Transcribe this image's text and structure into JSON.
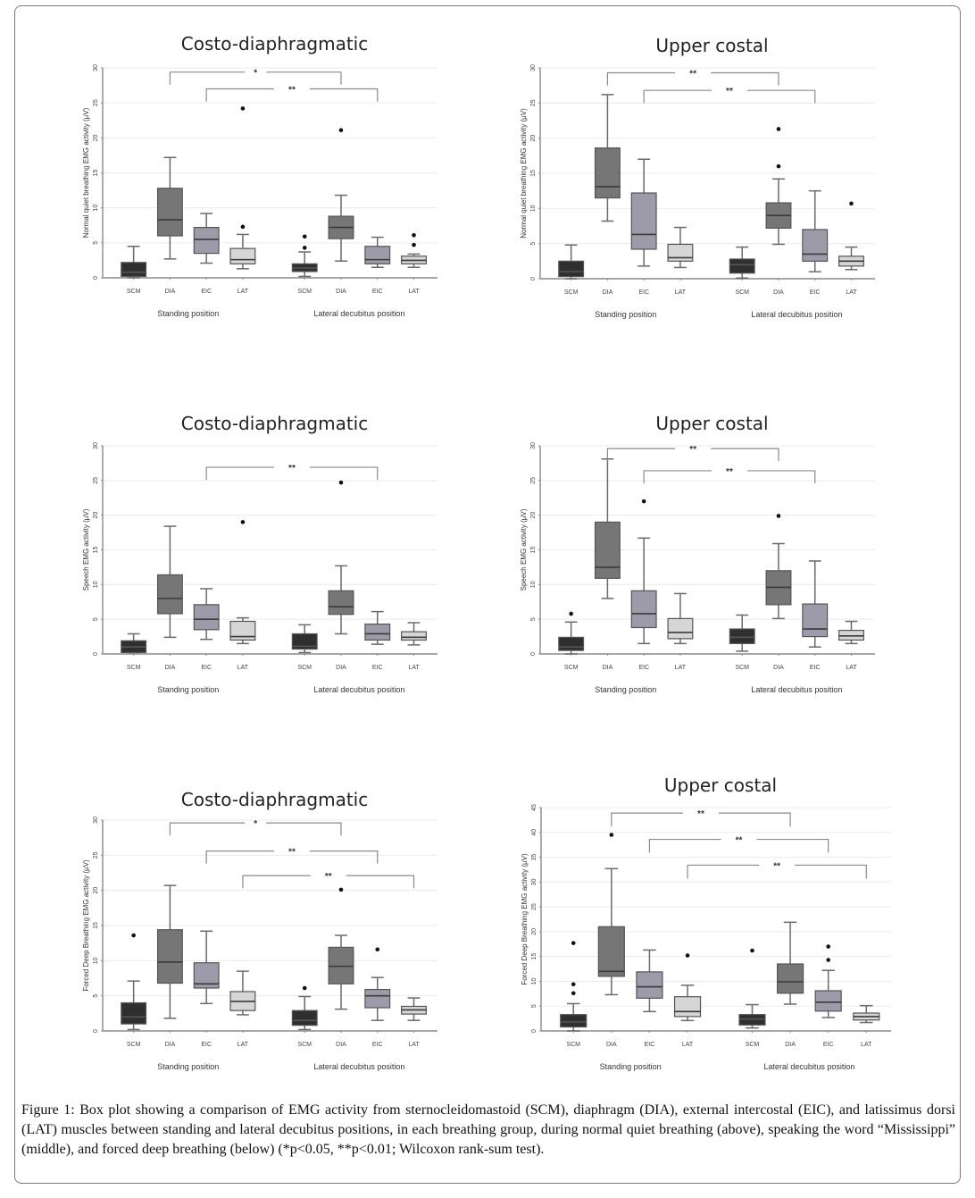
{
  "figure": {
    "caption_label": "Figure 1:",
    "caption_text": " Box plot showing a comparison of EMG activity from sternocleidomastoid (SCM), diaphragm (DIA), external intercostal (EIC), and latissimus dorsi (LAT) muscles between standing and lateral decubitus positions, in each breathing group, during normal quiet breathing (above), speaking the word “Mississippi” (middle), and forced deep breathing (below) (*p<0.05, **p<0.01; Wilcoxon rank-sum test).",
    "colors": {
      "SCM": "#2f2f2f",
      "DIA": "#767676",
      "EIC": "#9d9ba9",
      "LAT": "#d6d6d6",
      "axis": "#8a8a8a",
      "grid": "#eeeaea"
    }
  },
  "chart_data": [
    {
      "type": "box",
      "title": "Costo-diaphragmatic",
      "ylabel": "Normal quiet breathing EMG activity (µV)",
      "ylim": [
        0,
        30
      ],
      "yticks": [
        "0",
        "5",
        "10",
        "15",
        "20",
        "25",
        "30"
      ],
      "groups": [
        "Standing position",
        "Lateral decubitus position"
      ],
      "categories": [
        "SCM",
        "DIA",
        "EIC",
        "LAT"
      ],
      "boxes": [
        {
          "group": 0,
          "cat": "SCM",
          "min": 0,
          "q1": 0.2,
          "median": 0.8,
          "q3": 2.2,
          "max": 4.5,
          "outliers": []
        },
        {
          "group": 0,
          "cat": "DIA",
          "min": 2.7,
          "q1": 6.0,
          "median": 8.3,
          "q3": 12.8,
          "max": 17.2,
          "outliers": []
        },
        {
          "group": 0,
          "cat": "EIC",
          "min": 2.1,
          "q1": 3.5,
          "median": 5.5,
          "q3": 7.2,
          "max": 9.2,
          "outliers": []
        },
        {
          "group": 0,
          "cat": "LAT",
          "min": 1.3,
          "q1": 2.0,
          "median": 2.6,
          "q3": 4.2,
          "max": 6.2,
          "outliers": [
            7.3,
            24.2
          ]
        },
        {
          "group": 1,
          "cat": "SCM",
          "min": 0.2,
          "q1": 0.9,
          "median": 1.4,
          "q3": 2.0,
          "max": 3.7,
          "outliers": [
            4.3,
            5.9
          ]
        },
        {
          "group": 1,
          "cat": "DIA",
          "min": 2.4,
          "q1": 5.6,
          "median": 7.2,
          "q3": 8.8,
          "max": 11.8,
          "outliers": [
            21.1
          ]
        },
        {
          "group": 1,
          "cat": "EIC",
          "min": 1.5,
          "q1": 2.0,
          "median": 2.6,
          "q3": 4.5,
          "max": 5.8,
          "outliers": []
        },
        {
          "group": 1,
          "cat": "LAT",
          "min": 1.5,
          "q1": 2.0,
          "median": 2.5,
          "q3": 3.1,
          "max": 3.4,
          "outliers": [
            4.7,
            6.1
          ]
        }
      ],
      "significance": [
        {
          "from": 1,
          "to": 5,
          "label": "*",
          "y": 29.4
        },
        {
          "from": 2,
          "to": 6,
          "label": "**",
          "y": 27.0
        }
      ]
    },
    {
      "type": "box",
      "title": "Upper costal",
      "ylabel": "Normal quiet breathing EMG activity (µV)",
      "ylim": [
        0,
        30
      ],
      "yticks": [
        "0",
        "5",
        "10",
        "15",
        "20",
        "25",
        "30"
      ],
      "groups": [
        "Standing position",
        "Lateral decubitus position"
      ],
      "categories": [
        "SCM",
        "DIA",
        "EIC",
        "LAT"
      ],
      "boxes": [
        {
          "group": 0,
          "cat": "SCM",
          "min": 0,
          "q1": 0.3,
          "median": 1.0,
          "q3": 2.5,
          "max": 4.8,
          "outliers": []
        },
        {
          "group": 0,
          "cat": "DIA",
          "min": 8.2,
          "q1": 11.5,
          "median": 13.1,
          "q3": 18.6,
          "max": 26.2,
          "outliers": []
        },
        {
          "group": 0,
          "cat": "EIC",
          "min": 1.8,
          "q1": 4.2,
          "median": 6.3,
          "q3": 12.2,
          "max": 17.0,
          "outliers": []
        },
        {
          "group": 0,
          "cat": "LAT",
          "min": 1.6,
          "q1": 2.5,
          "median": 3.0,
          "q3": 4.9,
          "max": 7.3,
          "outliers": []
        },
        {
          "group": 1,
          "cat": "SCM",
          "min": 0.1,
          "q1": 0.8,
          "median": 2.0,
          "q3": 2.8,
          "max": 4.5,
          "outliers": []
        },
        {
          "group": 1,
          "cat": "DIA",
          "min": 4.9,
          "q1": 7.2,
          "median": 9.0,
          "q3": 10.8,
          "max": 14.2,
          "outliers": [
            16.0,
            21.3
          ]
        },
        {
          "group": 1,
          "cat": "EIC",
          "min": 1.0,
          "q1": 2.5,
          "median": 3.5,
          "q3": 7.0,
          "max": 12.5,
          "outliers": []
        },
        {
          "group": 1,
          "cat": "LAT",
          "min": 1.3,
          "q1": 1.8,
          "median": 2.5,
          "q3": 3.2,
          "max": 4.5,
          "outliers": [
            10.7
          ]
        }
      ],
      "significance": [
        {
          "from": 1,
          "to": 5,
          "label": "**",
          "y": 29.3
        },
        {
          "from": 2,
          "to": 6,
          "label": "**",
          "y": 26.8
        }
      ]
    },
    {
      "type": "box",
      "title": "Costo-diaphragmatic",
      "ylabel": "Speech EMG activity (µV)",
      "ylim": [
        0,
        30
      ],
      "yticks": [
        "0",
        "5",
        "10",
        "15",
        "20",
        "25",
        "30"
      ],
      "groups": [
        "Standing position",
        "Lateral decubitus position"
      ],
      "categories": [
        "SCM",
        "DIA",
        "EIC",
        "LAT"
      ],
      "boxes": [
        {
          "group": 0,
          "cat": "SCM",
          "min": 0.2,
          "q1": 0.2,
          "median": 1.0,
          "q3": 1.9,
          "max": 2.9,
          "outliers": []
        },
        {
          "group": 0,
          "cat": "DIA",
          "min": 2.4,
          "q1": 5.8,
          "median": 8.0,
          "q3": 11.4,
          "max": 18.4,
          "outliers": []
        },
        {
          "group": 0,
          "cat": "EIC",
          "min": 2.1,
          "q1": 3.5,
          "median": 5.0,
          "q3": 7.1,
          "max": 9.4,
          "outliers": []
        },
        {
          "group": 0,
          "cat": "LAT",
          "min": 1.5,
          "q1": 2.0,
          "median": 2.5,
          "q3": 4.7,
          "max": 5.2,
          "outliers": [
            19.0
          ]
        },
        {
          "group": 1,
          "cat": "SCM",
          "min": 0.2,
          "q1": 0.7,
          "median": 1.1,
          "q3": 2.9,
          "max": 4.2,
          "outliers": []
        },
        {
          "group": 1,
          "cat": "DIA",
          "min": 2.9,
          "q1": 5.7,
          "median": 6.8,
          "q3": 9.1,
          "max": 12.7,
          "outliers": [
            24.7
          ]
        },
        {
          "group": 1,
          "cat": "EIC",
          "min": 1.4,
          "q1": 2.0,
          "median": 2.9,
          "q3": 4.3,
          "max": 6.1,
          "outliers": []
        },
        {
          "group": 1,
          "cat": "LAT",
          "min": 1.3,
          "q1": 2.0,
          "median": 2.4,
          "q3": 3.2,
          "max": 4.5,
          "outliers": []
        }
      ],
      "significance": [
        {
          "from": 2,
          "to": 6,
          "label": "**",
          "y": 26.9
        }
      ]
    },
    {
      "type": "box",
      "title": "Upper costal",
      "ylabel": "Speech EMG activity (µV)",
      "ylim": [
        0,
        30
      ],
      "yticks": [
        "0",
        "5",
        "10",
        "15",
        "20",
        "25",
        "30"
      ],
      "groups": [
        "Standing position",
        "Lateral decubitus position"
      ],
      "categories": [
        "SCM",
        "DIA",
        "EIC",
        "LAT"
      ],
      "boxes": [
        {
          "group": 0,
          "cat": "SCM",
          "min": 0,
          "q1": 0.5,
          "median": 1.0,
          "q3": 2.4,
          "max": 4.6,
          "outliers": [
            5.8
          ]
        },
        {
          "group": 0,
          "cat": "DIA",
          "min": 8.0,
          "q1": 10.9,
          "median": 12.5,
          "q3": 19.0,
          "max": 28.1,
          "outliers": []
        },
        {
          "group": 0,
          "cat": "EIC",
          "min": 1.5,
          "q1": 3.8,
          "median": 5.8,
          "q3": 9.1,
          "max": 16.7,
          "outliers": [
            22.0
          ]
        },
        {
          "group": 0,
          "cat": "LAT",
          "min": 1.5,
          "q1": 2.2,
          "median": 3.1,
          "q3": 5.1,
          "max": 8.7,
          "outliers": []
        },
        {
          "group": 1,
          "cat": "SCM",
          "min": 0.4,
          "q1": 1.5,
          "median": 2.4,
          "q3": 3.6,
          "max": 5.6,
          "outliers": []
        },
        {
          "group": 1,
          "cat": "DIA",
          "min": 5.1,
          "q1": 7.1,
          "median": 9.6,
          "q3": 12.0,
          "max": 15.9,
          "outliers": [
            19.9
          ]
        },
        {
          "group": 1,
          "cat": "EIC",
          "min": 1.0,
          "q1": 2.5,
          "median": 3.6,
          "q3": 7.2,
          "max": 13.4,
          "outliers": []
        },
        {
          "group": 1,
          "cat": "LAT",
          "min": 1.5,
          "q1": 2.0,
          "median": 2.6,
          "q3": 3.4,
          "max": 4.7,
          "outliers": []
        }
      ],
      "significance": [
        {
          "from": 1,
          "to": 5,
          "label": "**",
          "y": 29.6
        },
        {
          "from": 2,
          "to": 6,
          "label": "**",
          "y": 26.4
        }
      ]
    },
    {
      "type": "box",
      "title": "Costo-diaphragmatic",
      "ylabel": "Forced Deep Breathing EMG activity (µV)",
      "ylim": [
        0,
        30
      ],
      "yticks": [
        "0",
        "5",
        "10",
        "15",
        "20",
        "25",
        "30"
      ],
      "groups": [
        "Standing position",
        "Lateral decubitus position"
      ],
      "categories": [
        "SCM",
        "DIA",
        "EIC",
        "LAT"
      ],
      "boxes": [
        {
          "group": 0,
          "cat": "SCM",
          "min": 0.2,
          "q1": 1.0,
          "median": 2.0,
          "q3": 4.0,
          "max": 7.1,
          "outliers": [
            13.6
          ]
        },
        {
          "group": 0,
          "cat": "DIA",
          "min": 1.8,
          "q1": 6.8,
          "median": 9.8,
          "q3": 14.4,
          "max": 20.7,
          "outliers": []
        },
        {
          "group": 0,
          "cat": "EIC",
          "min": 3.9,
          "q1": 6.1,
          "median": 6.7,
          "q3": 9.7,
          "max": 14.2,
          "outliers": []
        },
        {
          "group": 0,
          "cat": "LAT",
          "min": 2.3,
          "q1": 2.9,
          "median": 4.2,
          "q3": 5.6,
          "max": 8.5,
          "outliers": []
        },
        {
          "group": 1,
          "cat": "SCM",
          "min": 0.2,
          "q1": 0.8,
          "median": 1.5,
          "q3": 2.9,
          "max": 4.9,
          "outliers": [
            6.1
          ]
        },
        {
          "group": 1,
          "cat": "DIA",
          "min": 3.1,
          "q1": 6.7,
          "median": 9.2,
          "q3": 11.9,
          "max": 13.6,
          "outliers": [
            20.1
          ]
        },
        {
          "group": 1,
          "cat": "EIC",
          "min": 1.5,
          "q1": 3.3,
          "median": 5.0,
          "q3": 5.9,
          "max": 7.6,
          "outliers": [
            11.6
          ]
        },
        {
          "group": 1,
          "cat": "LAT",
          "min": 1.5,
          "q1": 2.4,
          "median": 3.0,
          "q3": 3.5,
          "max": 4.7,
          "outliers": []
        }
      ],
      "significance": [
        {
          "from": 1,
          "to": 5,
          "label": "*",
          "y": 29.6
        },
        {
          "from": 2,
          "to": 6,
          "label": "**",
          "y": 25.6
        },
        {
          "from": 3,
          "to": 7,
          "label": "**",
          "y": 22.1
        }
      ]
    },
    {
      "type": "box",
      "title": "Upper costal",
      "ylabel": "Forced Deep Breathing EMG activity (µV)",
      "ylim": [
        0,
        45
      ],
      "yticks": [
        "0",
        "5",
        "10",
        "15",
        "20",
        "25",
        "30",
        "35",
        "40",
        "45"
      ],
      "groups": [
        "Standing position",
        "Lateral decubitus position"
      ],
      "categories": [
        "SCM",
        "DIA",
        "EIC",
        "LAT"
      ],
      "boxes": [
        {
          "group": 0,
          "cat": "SCM",
          "min": 0,
          "q1": 0.8,
          "median": 1.8,
          "q3": 3.3,
          "max": 5.5,
          "outliers": [
            7.6,
            9.4,
            17.7
          ]
        },
        {
          "group": 0,
          "cat": "DIA",
          "min": 7.3,
          "q1": 11.0,
          "median": 12.0,
          "q3": 21.0,
          "max": 32.7,
          "outliers": [
            39.5
          ]
        },
        {
          "group": 0,
          "cat": "EIC",
          "min": 3.9,
          "q1": 6.6,
          "median": 8.9,
          "q3": 11.9,
          "max": 16.3,
          "outliers": []
        },
        {
          "group": 0,
          "cat": "LAT",
          "min": 2.1,
          "q1": 2.9,
          "median": 3.9,
          "q3": 6.9,
          "max": 9.2,
          "outliers": [
            15.2
          ]
        },
        {
          "group": 1,
          "cat": "SCM",
          "min": 0.6,
          "q1": 1.2,
          "median": 2.4,
          "q3": 3.3,
          "max": 5.3,
          "outliers": [
            16.2
          ]
        },
        {
          "group": 1,
          "cat": "DIA",
          "min": 5.4,
          "q1": 7.6,
          "median": 9.9,
          "q3": 13.5,
          "max": 21.9,
          "outliers": []
        },
        {
          "group": 1,
          "cat": "EIC",
          "min": 2.7,
          "q1": 4.0,
          "median": 5.8,
          "q3": 8.1,
          "max": 12.2,
          "outliers": [
            14.3,
            17.0
          ]
        },
        {
          "group": 1,
          "cat": "LAT",
          "min": 1.7,
          "q1": 2.2,
          "median": 2.9,
          "q3": 3.6,
          "max": 5.1,
          "outliers": []
        }
      ],
      "significance": [
        {
          "from": 1,
          "to": 5,
          "label": "**",
          "y": 43.9
        },
        {
          "from": 2,
          "to": 6,
          "label": "**",
          "y": 38.6
        },
        {
          "from": 3,
          "to": 7,
          "label": "**",
          "y": 33.4
        }
      ]
    }
  ]
}
